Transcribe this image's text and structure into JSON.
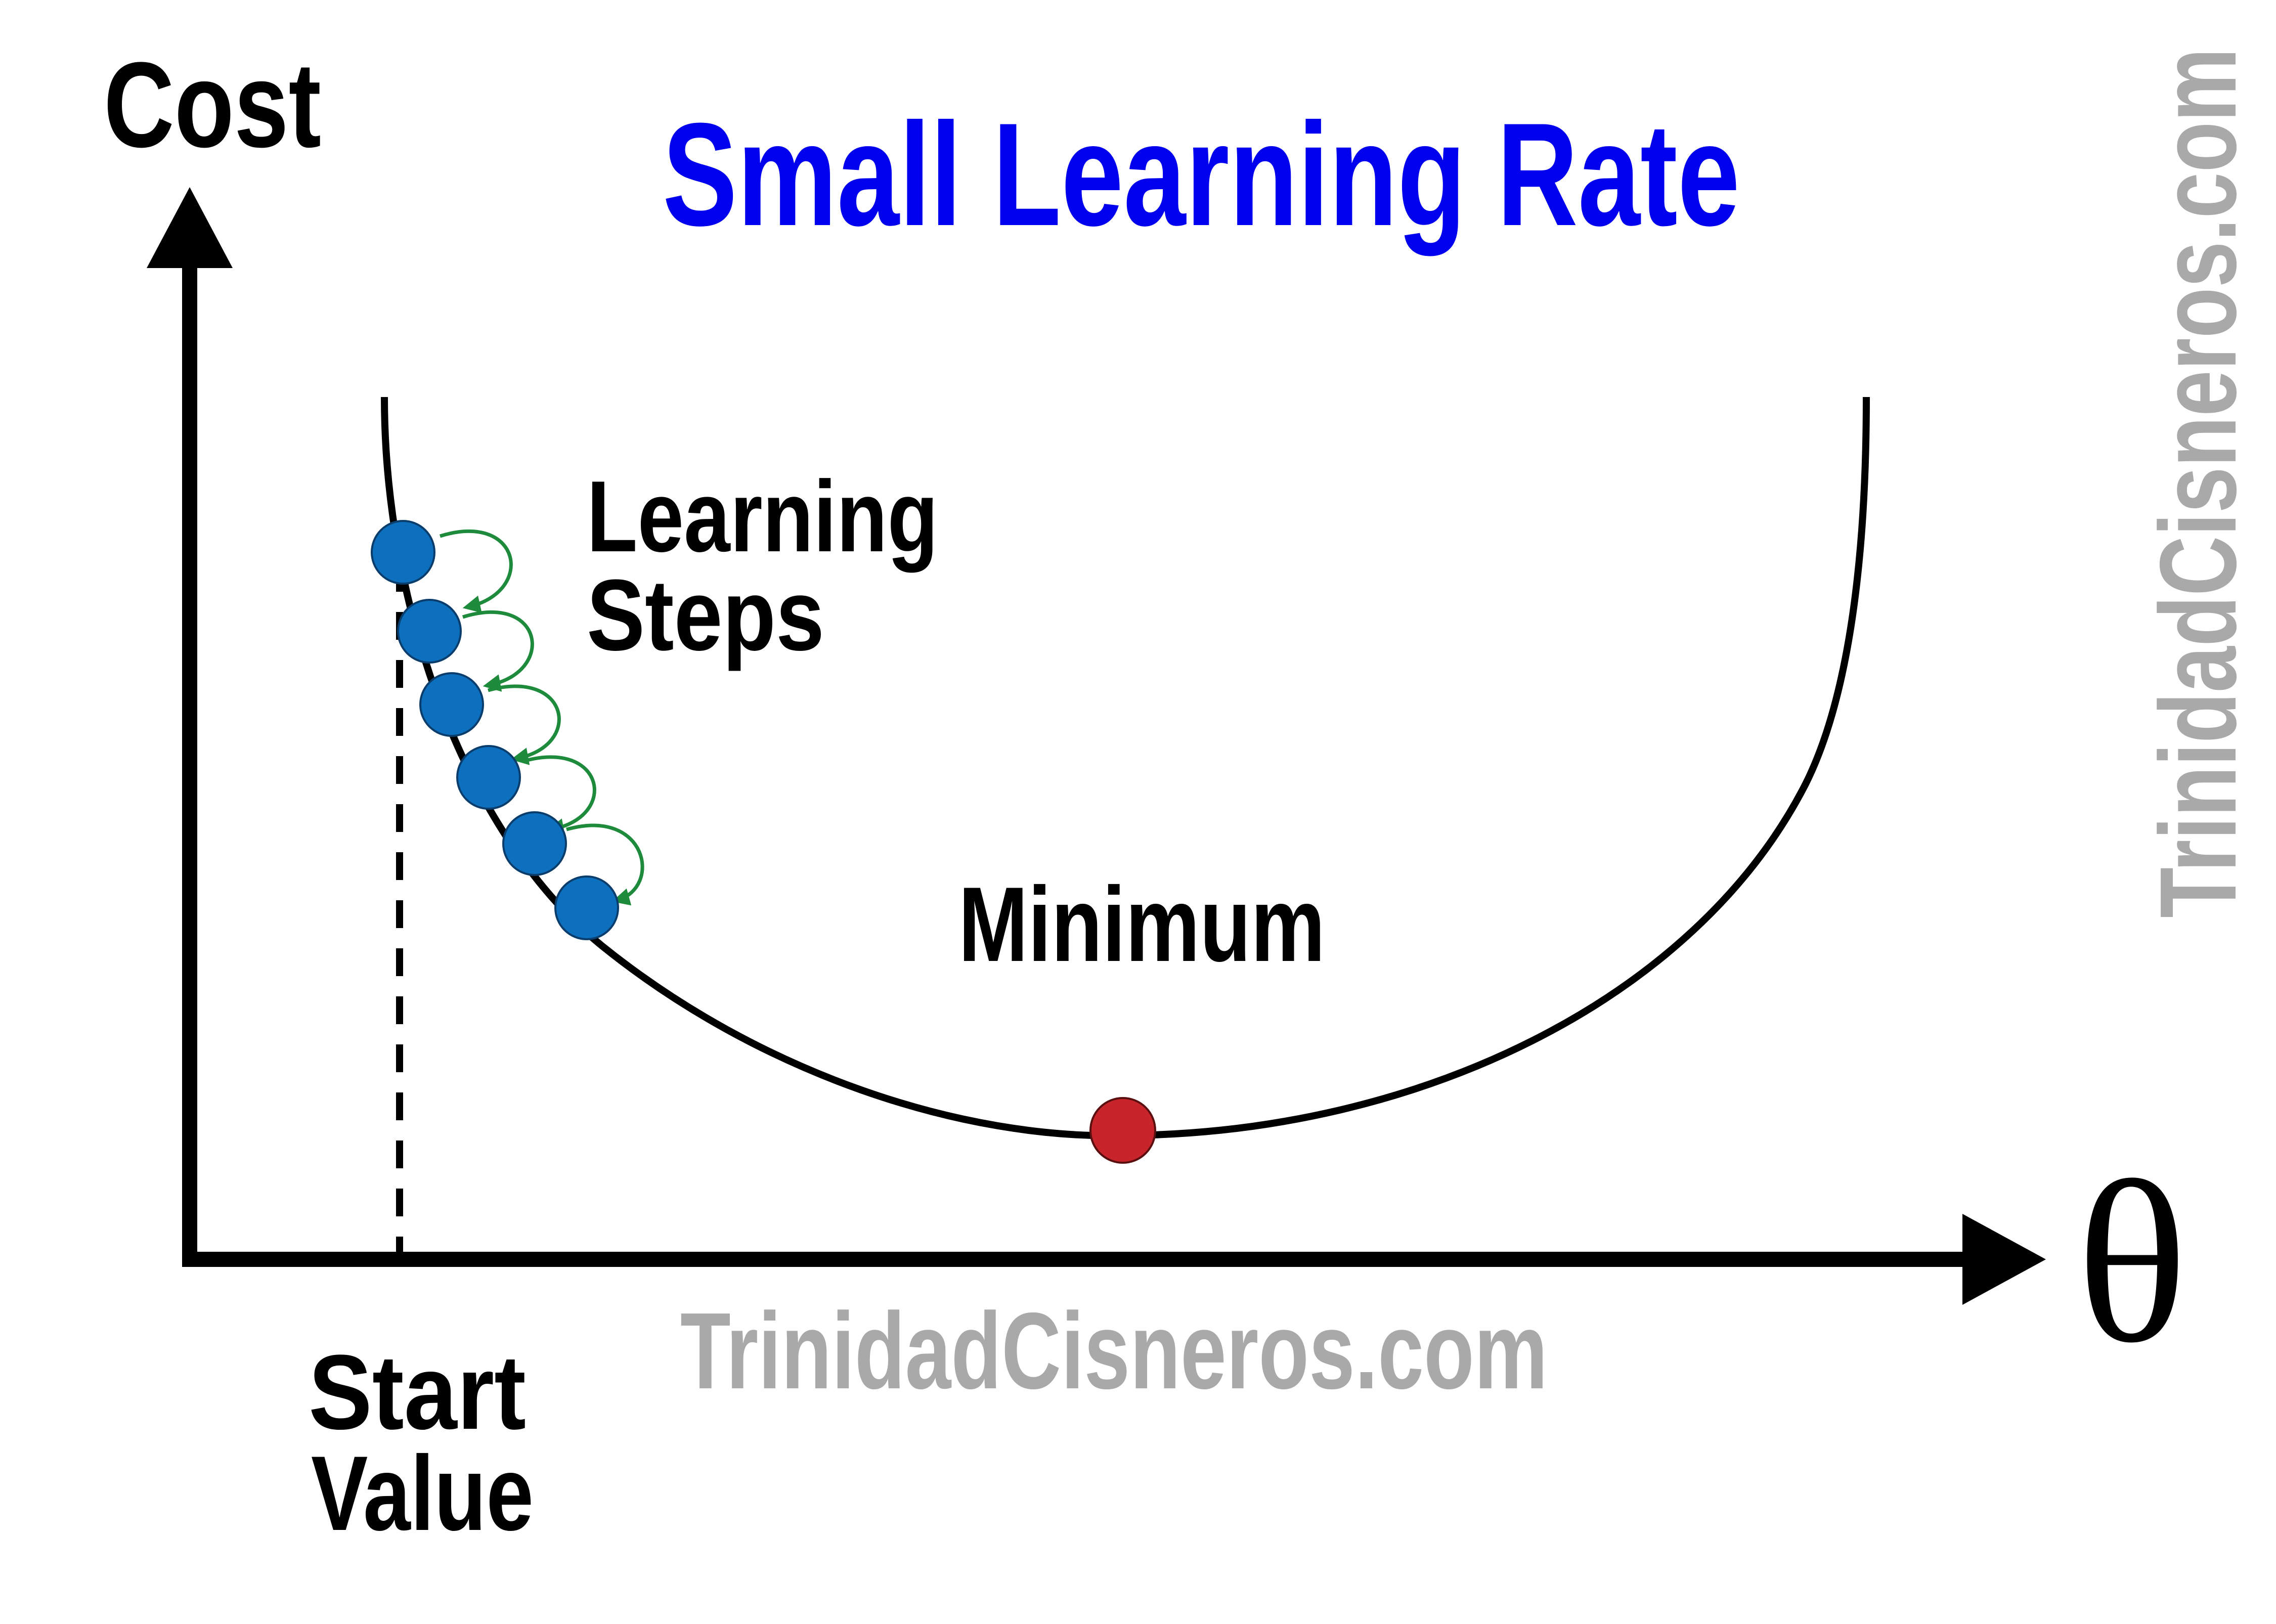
{
  "title": "Small Learning Rate",
  "axes": {
    "y_label": "Cost",
    "x_label": "θ"
  },
  "annotations": {
    "learning_steps_line1": "Learning",
    "learning_steps_line2": "Steps",
    "minimum": "Minimum",
    "start_value_line1": "Start",
    "start_value_line2": "Value"
  },
  "watermarks": {
    "bottom": "TrinidadCisneros.com",
    "side": "TrinidadCisneros.com"
  },
  "colors": {
    "title": "#0000ee",
    "step_point": "#0c70bf",
    "minimum_point": "#c8242b",
    "step_arrow": "#1e8a3c",
    "watermark": "#a9a9a9",
    "curve": "#000000"
  },
  "step_count": 6
}
